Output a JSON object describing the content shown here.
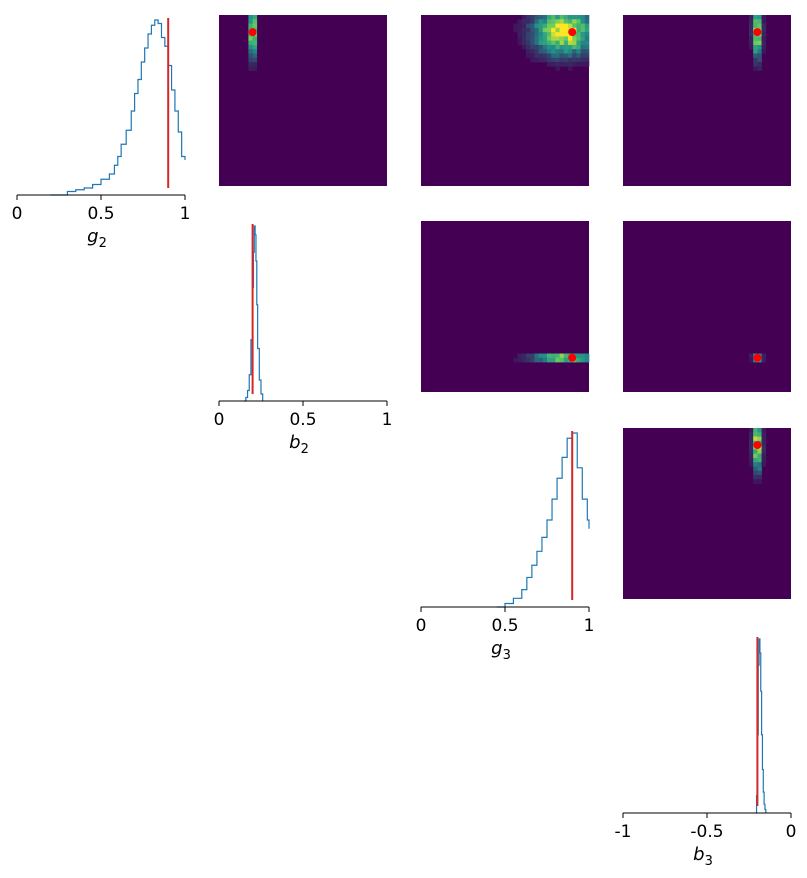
{
  "chart_data": {
    "type": "heatmap",
    "parameters": [
      "g_2",
      "b_2",
      "g_3",
      "b_3"
    ],
    "true_values": {
      "g_2": 0.9,
      "b_2": 0.2,
      "g_3": 0.9,
      "b_3": -0.2
    },
    "colors": {
      "histogram": "#1f77b4",
      "truth_line": "#d62728",
      "truth_point": "#ff0000",
      "heatmap_bg": "#440154",
      "heatmap_low": "#21918c",
      "heatmap_mid": "#5ec962",
      "heatmap_high": "#fde725"
    },
    "marginals": [
      {
        "param": "g_2",
        "xlabel_base": "g",
        "xlabel_sub": "2",
        "xlim": [
          0,
          1
        ],
        "ticks": [
          0,
          0.5,
          1
        ],
        "tick_labels": [
          "0",
          "0.5",
          "1"
        ],
        "true_value": 0.9,
        "hist_x": [
          0.2,
          0.3,
          0.35,
          0.4,
          0.45,
          0.5,
          0.55,
          0.58,
          0.6,
          0.62,
          0.65,
          0.68,
          0.7,
          0.72,
          0.74,
          0.76,
          0.78,
          0.8,
          0.82,
          0.84,
          0.86,
          0.88,
          0.9,
          0.92,
          0.94,
          0.96,
          0.98,
          1.0
        ],
        "hist_y": [
          0.0,
          0.02,
          0.03,
          0.04,
          0.06,
          0.09,
          0.12,
          0.17,
          0.22,
          0.29,
          0.37,
          0.48,
          0.58,
          0.66,
          0.76,
          0.84,
          0.92,
          0.97,
          1.0,
          0.98,
          0.9,
          0.85,
          0.74,
          0.6,
          0.48,
          0.36,
          0.22,
          0.2
        ]
      },
      {
        "param": "b_2",
        "xlabel_base": "b",
        "xlabel_sub": "2",
        "xlim": [
          0,
          1
        ],
        "ticks": [
          0,
          0.5,
          1
        ],
        "tick_labels": [
          "0",
          "0.5",
          "1"
        ],
        "true_value": 0.2,
        "hist_x": [
          0.15,
          0.16,
          0.17,
          0.18,
          0.19,
          0.2,
          0.205,
          0.21,
          0.215,
          0.22,
          0.225,
          0.23,
          0.24,
          0.25,
          0.26
        ],
        "hist_y": [
          0.0,
          0.02,
          0.06,
          0.15,
          0.35,
          0.65,
          0.85,
          1.0,
          0.95,
          0.8,
          0.55,
          0.3,
          0.12,
          0.04,
          0.0
        ]
      },
      {
        "param": "g_3",
        "xlabel_base": "g",
        "xlabel_sub": "3",
        "xlim": [
          0,
          1
        ],
        "ticks": [
          0,
          0.5,
          1
        ],
        "tick_labels": [
          "0",
          "0.5",
          "1"
        ],
        "true_value": 0.9,
        "hist_x": [
          0.45,
          0.5,
          0.55,
          0.6,
          0.63,
          0.66,
          0.69,
          0.72,
          0.75,
          0.78,
          0.81,
          0.84,
          0.87,
          0.9,
          0.93,
          0.96,
          0.99,
          1.0
        ],
        "hist_y": [
          0.0,
          0.02,
          0.05,
          0.1,
          0.17,
          0.24,
          0.32,
          0.4,
          0.5,
          0.62,
          0.74,
          0.86,
          0.97,
          1.0,
          0.8,
          0.62,
          0.5,
          0.45
        ]
      },
      {
        "param": "b_3",
        "xlabel_base": "b",
        "xlabel_sub": "3",
        "xlim": [
          -1,
          0
        ],
        "ticks": [
          -1,
          -0.5,
          0
        ],
        "tick_labels": [
          "-1",
          "-0.5",
          "0"
        ],
        "true_value": -0.2,
        "hist_x": [
          -0.21,
          -0.205,
          -0.2,
          -0.195,
          -0.19,
          -0.185,
          -0.18,
          -0.175,
          -0.17,
          -0.165,
          -0.16,
          -0.155,
          -0.15
        ],
        "hist_y": [
          0.0,
          0.1,
          0.45,
          0.85,
          1.0,
          0.92,
          0.7,
          0.45,
          0.25,
          0.12,
          0.05,
          0.02,
          0.0
        ]
      }
    ],
    "pairs": [
      {
        "x": "g_2",
        "y": "b_2",
        "peak": [
          0.2,
          0.9
        ],
        "spread": [
          0.015,
          0.1
        ],
        "true_point": [
          0.2,
          0.9
        ]
      },
      {
        "x": "g_2",
        "y": "g_3",
        "peak": [
          0.85,
          0.9
        ],
        "spread": [
          0.12,
          0.09
        ],
        "true_point": [
          0.9,
          0.9
        ]
      },
      {
        "x": "g_2",
        "y": "b_3",
        "peak": [
          0.8,
          0.9
        ],
        "spread": [
          0.018,
          0.1
        ],
        "true_point": [
          0.8,
          0.9
        ]
      },
      {
        "x": "b_2",
        "y": "g_3",
        "peak": [
          0.85,
          0.2
        ],
        "spread": [
          0.13,
          0.014
        ],
        "true_point": [
          0.9,
          0.2
        ]
      },
      {
        "x": "b_2",
        "y": "b_3",
        "peak": [
          0.8,
          0.2
        ],
        "spread": [
          0.018,
          0.015
        ],
        "true_point": [
          0.8,
          0.2
        ]
      },
      {
        "x": "g_3",
        "y": "b_3",
        "peak": [
          0.8,
          0.9
        ],
        "spread": [
          0.018,
          0.1
        ],
        "true_point": [
          0.8,
          0.9
        ]
      }
    ]
  }
}
